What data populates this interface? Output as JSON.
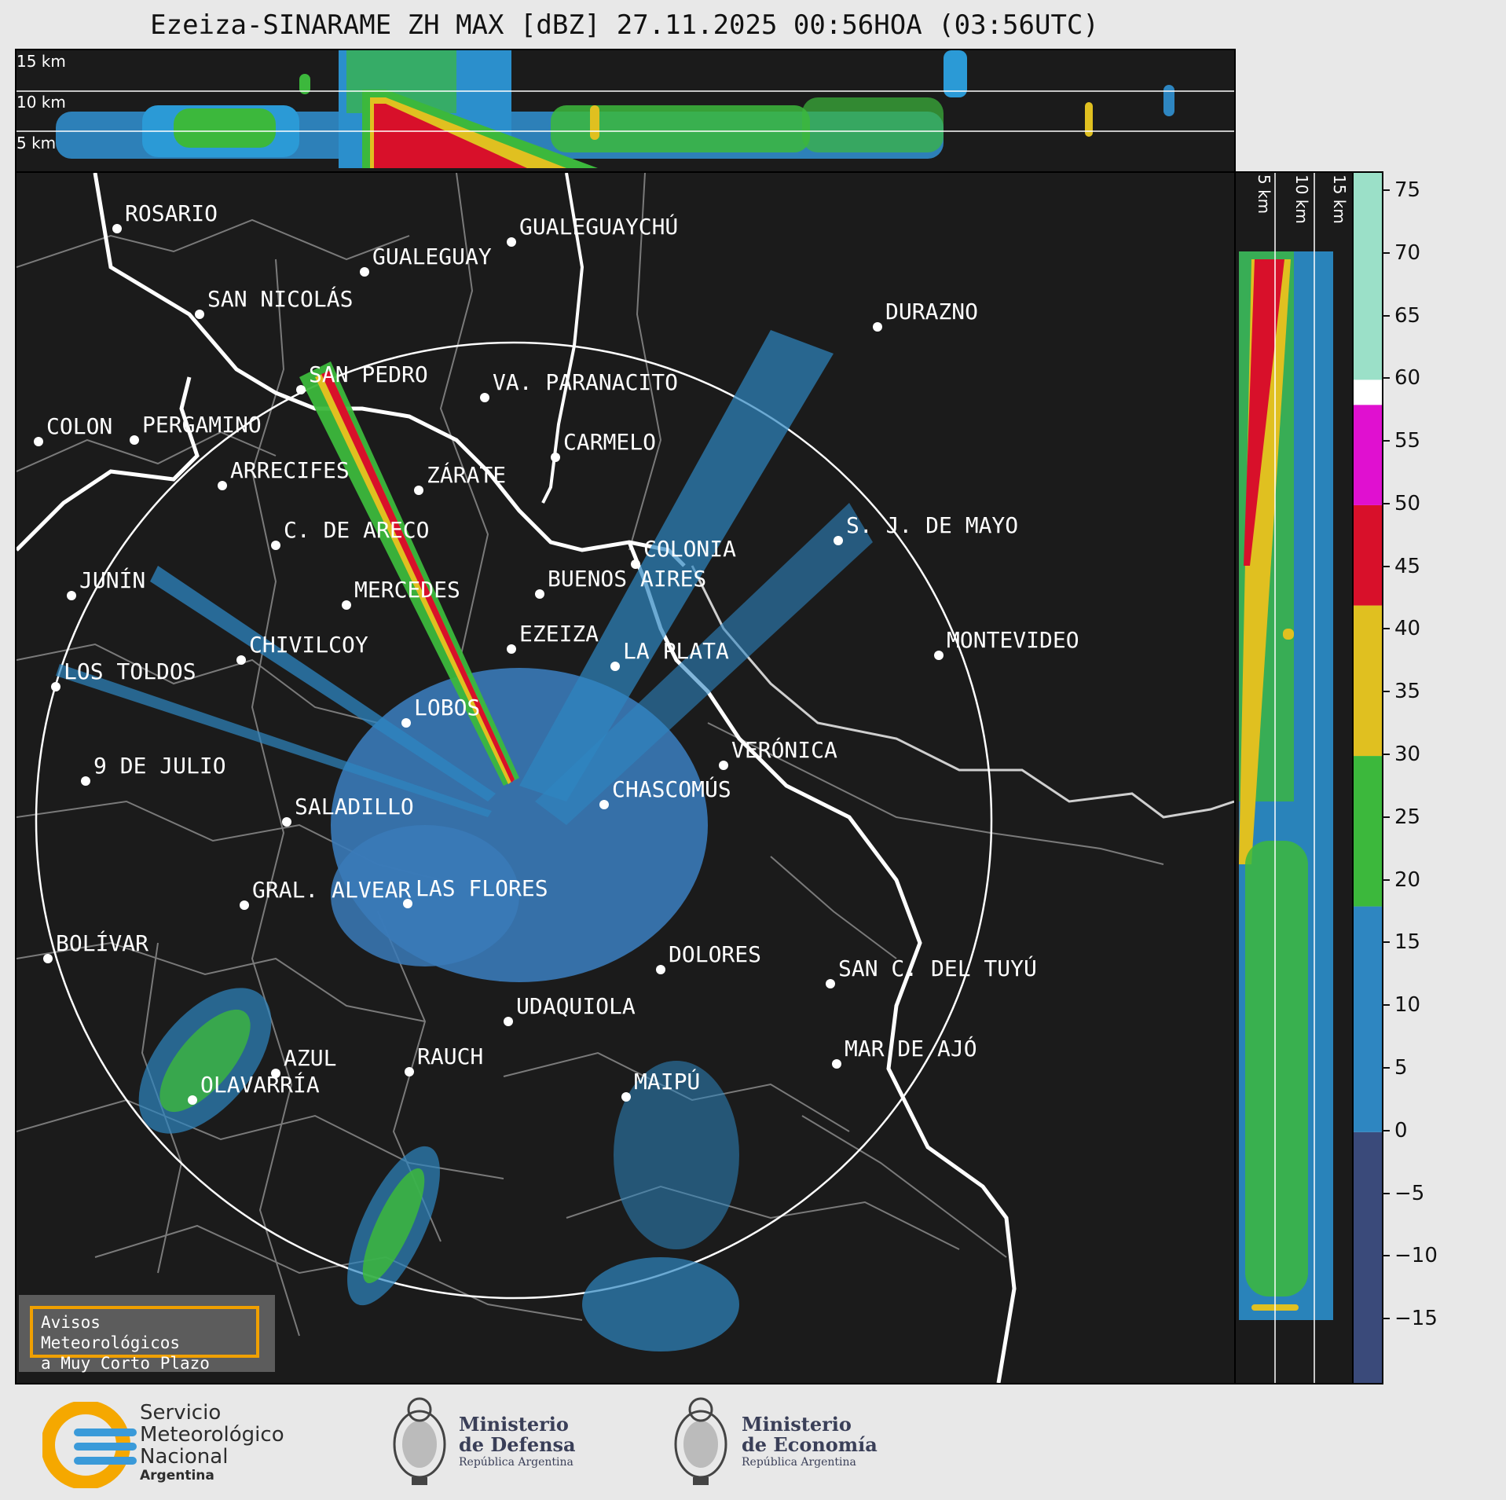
{
  "title": "Ezeiza-SINARAME ZH MAX [dBZ] 27.11.2025 00:56HOA (03:56UTC)",
  "top_panel": {
    "height_labels": [
      "15 km",
      "10 km",
      "5 km"
    ]
  },
  "side_panel": {
    "height_labels": [
      "5 km",
      "10 km",
      "15 km"
    ]
  },
  "colorbar": {
    "ticks": [
      "75",
      "70",
      "65",
      "60",
      "55",
      "50",
      "45",
      "40",
      "35",
      "30",
      "25",
      "20",
      "15",
      "10",
      "5",
      "0",
      "−5",
      "−10",
      "−15"
    ],
    "tick_values": [
      75,
      70,
      65,
      60,
      55,
      50,
      45,
      40,
      35,
      30,
      25,
      20,
      15,
      10,
      5,
      0,
      -5,
      -10,
      -15
    ],
    "range": [
      -20,
      76.5
    ],
    "colors": {
      "bands": [
        {
          "from": -20,
          "to": 0,
          "color": "#3a4a7a"
        },
        {
          "from": 0,
          "to": 18,
          "color": "#2e86c1"
        },
        {
          "from": 18,
          "to": 30,
          "color": "#3cb83c"
        },
        {
          "from": 30,
          "to": 42,
          "color": "#e0c020"
        },
        {
          "from": 42,
          "to": 50,
          "color": "#d8102a"
        },
        {
          "from": 50,
          "to": 58,
          "color": "#e010d0"
        },
        {
          "from": 58,
          "to": 60,
          "color": "#ffffff"
        },
        {
          "from": 60,
          "to": 76.5,
          "color": "#9be0c8"
        }
      ]
    }
  },
  "cities": [
    {
      "name": "ROSARIO"
    },
    {
      "name": "GUALEGUAYCHÚ"
    },
    {
      "name": "GUALEGUAY"
    },
    {
      "name": "SAN NICOLÁS"
    },
    {
      "name": "DURAZNO"
    },
    {
      "name": "SAN PEDRO"
    },
    {
      "name": "VA. PARANACITO"
    },
    {
      "name": "COLON"
    },
    {
      "name": "PERGAMINO"
    },
    {
      "name": "CARMELO"
    },
    {
      "name": "ARRECIFES"
    },
    {
      "name": "ZÁRATE"
    },
    {
      "name": "S. J. DE MAYO"
    },
    {
      "name": "C. DE ARECO"
    },
    {
      "name": "COLONIA"
    },
    {
      "name": "JUNÍN"
    },
    {
      "name": "BUENOS AIRES"
    },
    {
      "name": "MERCEDES"
    },
    {
      "name": "EZEIZA"
    },
    {
      "name": "MONTEVIDEO"
    },
    {
      "name": "CHIVILCOY"
    },
    {
      "name": "LA PLATA"
    },
    {
      "name": "LOS TOLDOS"
    },
    {
      "name": "LOBOS"
    },
    {
      "name": "VERÓNICA"
    },
    {
      "name": "9 DE JULIO"
    },
    {
      "name": "CHASCOMÚS"
    },
    {
      "name": "SALADILLO"
    },
    {
      "name": "GRAL. ALVEAR"
    },
    {
      "name": "LAS FLORES"
    },
    {
      "name": "BOLÍVAR"
    },
    {
      "name": "DOLORES"
    },
    {
      "name": "SAN C. DEL TUYÚ"
    },
    {
      "name": "UDAQUIOLA"
    },
    {
      "name": "MAR DE AJÓ"
    },
    {
      "name": "AZUL"
    },
    {
      "name": "RAUCH"
    },
    {
      "name": "OLAVARRÍA"
    },
    {
      "name": "MAIPÚ"
    }
  ],
  "warning": {
    "line1": "Avisos Meteorológicos",
    "line2": "a Muy Corto Plazo"
  },
  "footer": {
    "smn": {
      "line1": "Servicio",
      "line2": "Meteorológico",
      "line3": "Nacional",
      "line4": "Argentina"
    },
    "defensa": {
      "line1": "Ministerio",
      "line2": "de Defensa",
      "line3": "República Argentina"
    },
    "economia": {
      "line1": "Ministerio",
      "line2": "de Economía",
      "line3": "República Argentina"
    }
  }
}
